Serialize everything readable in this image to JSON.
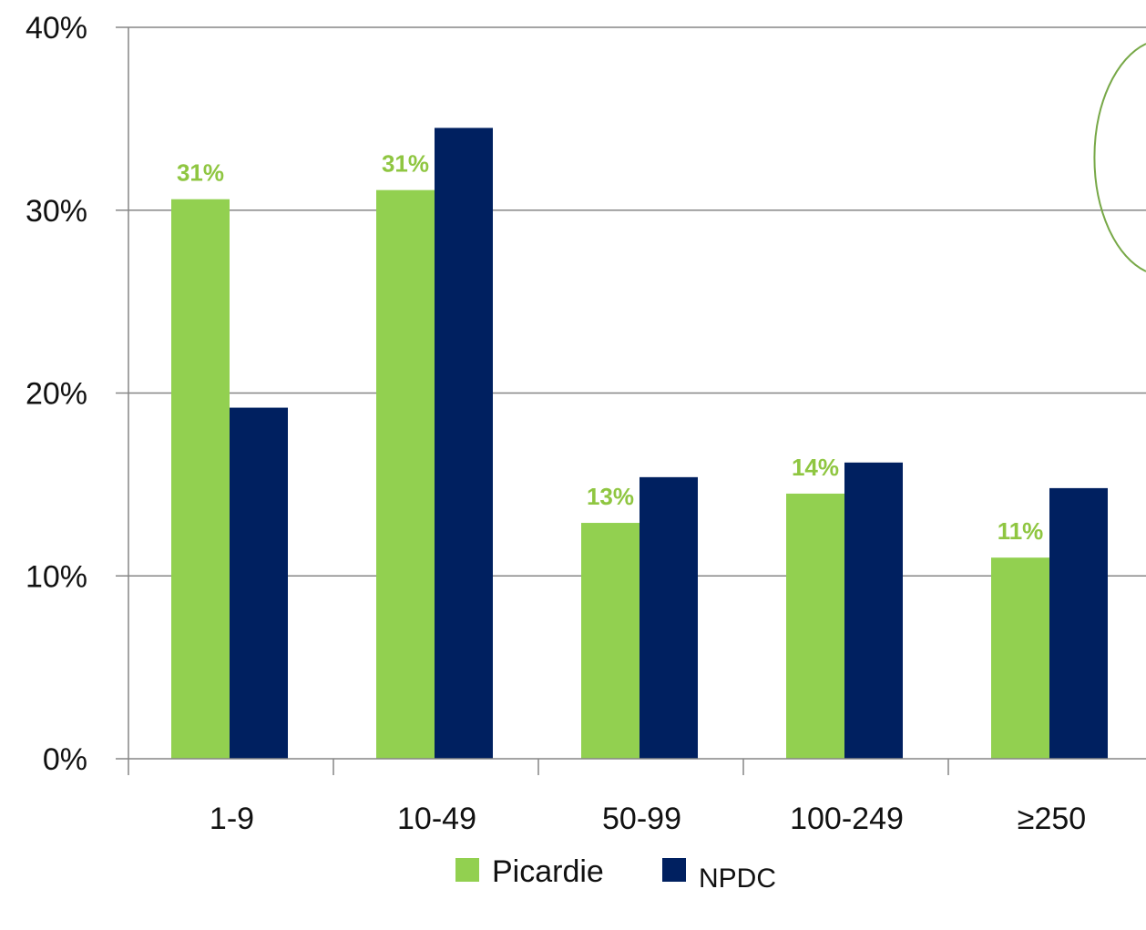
{
  "chart_data": {
    "type": "bar",
    "title": "",
    "xlabel": "",
    "ylabel": "",
    "categories": [
      "1-9",
      "10-49",
      "50-99",
      "100-249",
      "≥250"
    ],
    "series": [
      {
        "name": "Picardie",
        "values": [
          30.6,
          31.1,
          12.9,
          14.5,
          11.0
        ],
        "labels": [
          "31%",
          "31%",
          "13%",
          "14%",
          "11%"
        ],
        "color": "#92d050"
      },
      {
        "name": "NPDC",
        "values": [
          19.2,
          34.5,
          15.4,
          16.2,
          14.8
        ],
        "labels": [
          "",
          "",
          "",
          "",
          ""
        ],
        "color": "#002060"
      }
    ],
    "ylim": [
      0,
      40
    ],
    "yticks": [
      0,
      10,
      20,
      30,
      40
    ],
    "ytick_labels": [
      "0%",
      "10%",
      "20%",
      "30%",
      "40%"
    ],
    "grid": true,
    "legend_position": "bottom",
    "axis_color": "#868686",
    "label_color": "#8fc641"
  }
}
